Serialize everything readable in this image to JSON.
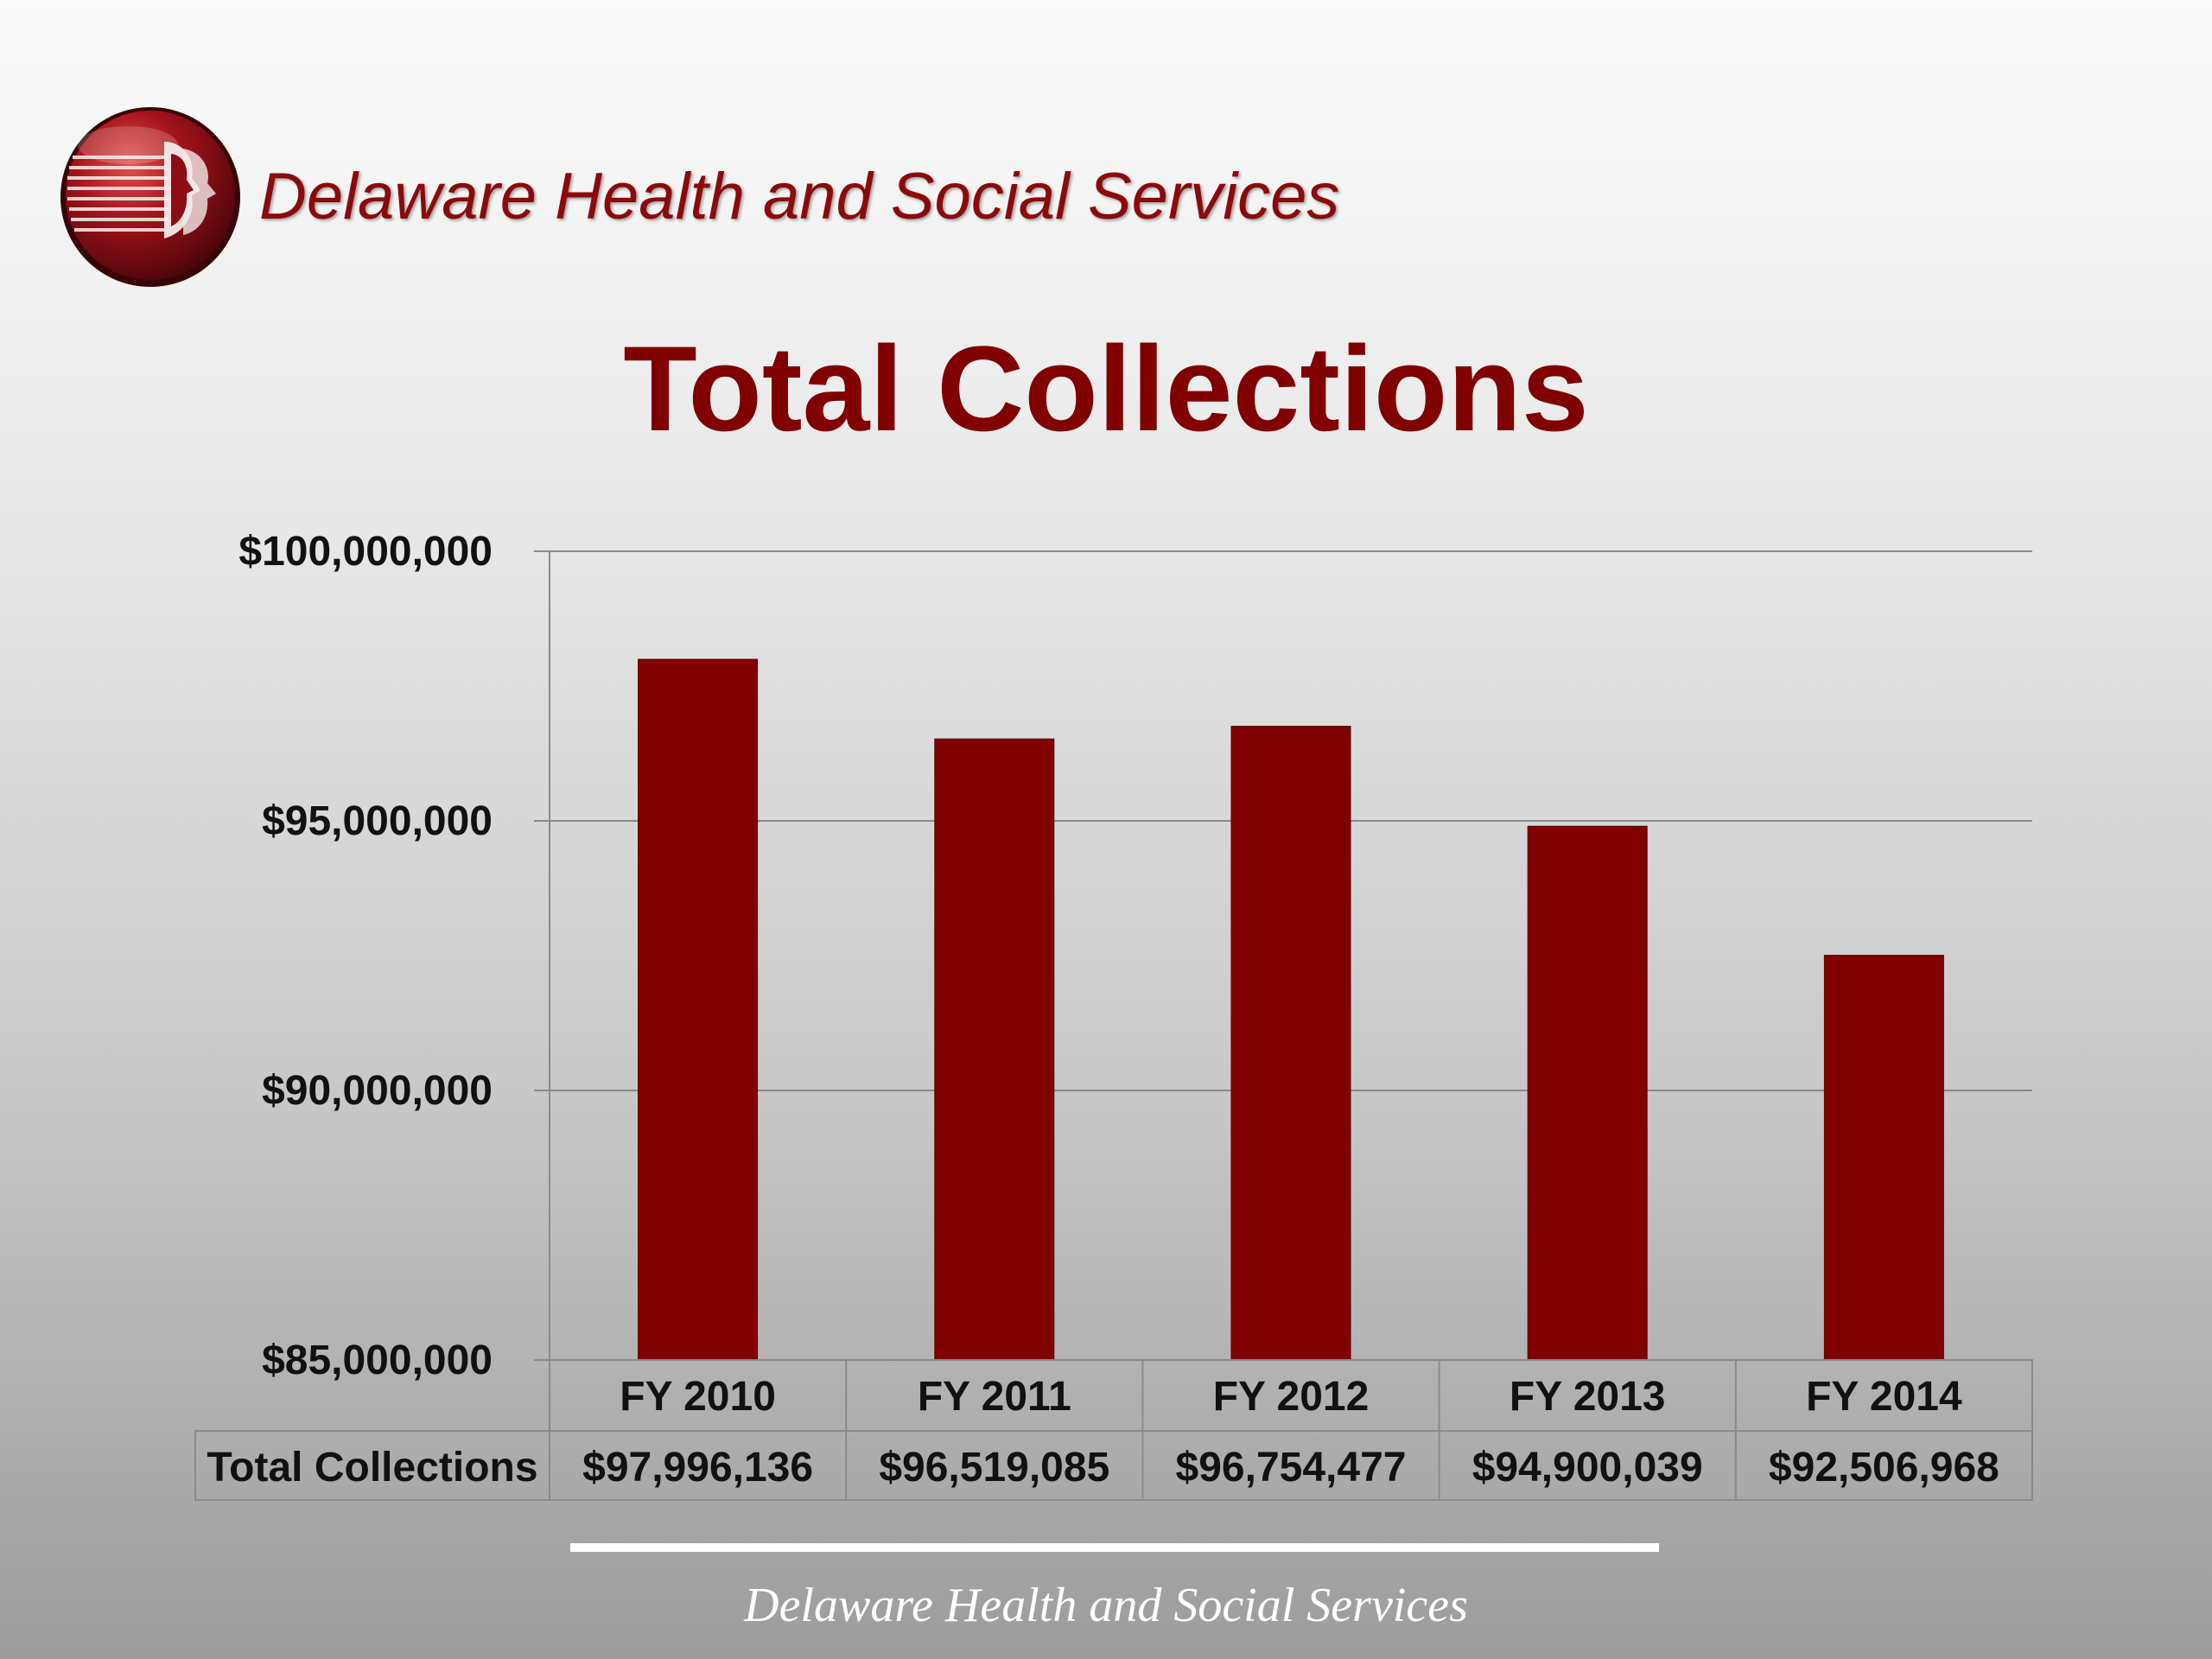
{
  "header": {
    "org_name": "Delaware Health and Social Services"
  },
  "slide": {
    "title": "Total Collections"
  },
  "footer": {
    "org_name": "Delaware Health and Social Services"
  },
  "colors": {
    "bar": "#800000",
    "title": "#800000",
    "header_text": "#8b0a0a"
  },
  "icons": {
    "logo": "dhss-logo-icon"
  },
  "chart_data": {
    "type": "bar",
    "categories": [
      "FY 2010",
      "FY 2011",
      "FY 2012",
      "FY 2013",
      "FY 2014"
    ],
    "series": [
      {
        "name": "Total Collections",
        "values": [
          97996136,
          96519085,
          96754477,
          94900039,
          92506968
        ]
      }
    ],
    "data_table": {
      "row_label": "Total Collections",
      "values": [
        "$97,996,136",
        "$96,519,085",
        "$96,754,477",
        "$94,900,039",
        "$92,506,968"
      ]
    },
    "yticks": [
      {
        "value": 100000000,
        "label": "$100,000,000"
      },
      {
        "value": 95000000,
        "label": "$95,000,000"
      },
      {
        "value": 90000000,
        "label": "$90,000,000"
      },
      {
        "value": 85000000,
        "label": "$85,000,000"
      }
    ],
    "ylim": [
      85000000,
      100000000
    ],
    "grid": true,
    "legend": "none"
  }
}
